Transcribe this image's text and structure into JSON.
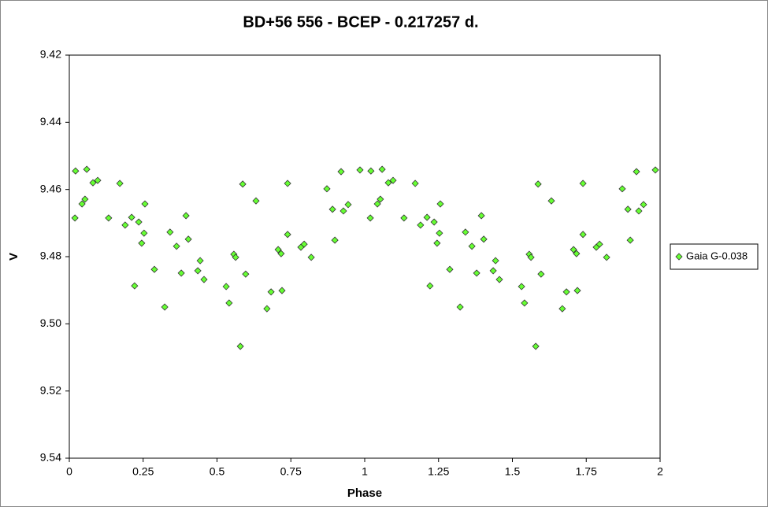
{
  "chart_data": {
    "type": "scatter",
    "title": "BD+56 556 - BCEP - 0.217257 d.",
    "x_label": "Phase",
    "y_label": "V",
    "xlim": [
      0,
      2
    ],
    "xticks": [
      0,
      0.25,
      0.5,
      0.75,
      1,
      1.25,
      1.5,
      1.75,
      2
    ],
    "ylim": [
      9.54,
      9.42
    ],
    "yticks": [
      9.42,
      9.44,
      9.46,
      9.48,
      {
        "value": 9.5,
        "label": "9.50"
      },
      9.52,
      9.54
    ],
    "legend": "right",
    "x": [
      0.019,
      0.021,
      0.043,
      0.053,
      0.059,
      0.08,
      0.096,
      0.133,
      0.171,
      0.189,
      0.211,
      0.221,
      0.235,
      0.245,
      0.253,
      0.256,
      0.288,
      0.323,
      0.341,
      0.363,
      0.379,
      0.395,
      0.403,
      0.435,
      0.443,
      0.456,
      0.531,
      0.541,
      0.557,
      0.563,
      0.579,
      0.587,
      0.597,
      0.632,
      0.669,
      0.683,
      0.707,
      0.717,
      0.72,
      0.739,
      0.739,
      0.784,
      0.795,
      0.819,
      0.872,
      0.891,
      0.899,
      0.92,
      0.928,
      0.944,
      0.984,
      1.019,
      1.021,
      1.043,
      1.053,
      1.059,
      1.08,
      1.096,
      1.133,
      1.171,
      1.189,
      1.211,
      1.221,
      1.235,
      1.245,
      1.253,
      1.256,
      1.288,
      1.323,
      1.341,
      1.363,
      1.379,
      1.395,
      1.403,
      1.435,
      1.443,
      1.456,
      1.531,
      1.541,
      1.557,
      1.563,
      1.579,
      1.587,
      1.597,
      1.632,
      1.669,
      1.683,
      1.707,
      1.717,
      1.72,
      1.739,
      1.739,
      1.784,
      1.795,
      1.819,
      1.872,
      1.891,
      1.899,
      1.92,
      1.928,
      1.944,
      1.984
    ],
    "series": [
      {
        "name": "Gaia G-0.038",
        "color": "#66ff33",
        "values": [
          9.4685,
          9.4545,
          9.4643,
          9.4629,
          9.454,
          9.458,
          9.4573,
          9.4685,
          9.4582,
          9.4706,
          9.4683,
          9.4887,
          9.4697,
          9.476,
          9.473,
          9.4643,
          9.4838,
          9.495,
          9.4727,
          9.4769,
          9.4849,
          9.4678,
          9.4748,
          9.4842,
          9.4812,
          9.4868,
          9.4889,
          9.4938,
          9.4793,
          9.4802,
          9.5067,
          9.4584,
          9.4852,
          9.4634,
          9.4955,
          9.4905,
          9.4779,
          9.4791,
          9.4901,
          9.4582,
          9.4734,
          9.4772,
          9.4763,
          9.4802,
          9.4598,
          9.4659,
          9.4751,
          9.4547,
          9.4664,
          9.4645,
          9.4542,
          9.4685,
          9.4545,
          9.4643,
          9.4629,
          9.454,
          9.458,
          9.4573,
          9.4685,
          9.4582,
          9.4706,
          9.4683,
          9.4887,
          9.4697,
          9.476,
          9.473,
          9.4643,
          9.4838,
          9.495,
          9.4727,
          9.4769,
          9.4849,
          9.4678,
          9.4748,
          9.4842,
          9.4812,
          9.4868,
          9.4889,
          9.4938,
          9.4793,
          9.4802,
          9.5067,
          9.4584,
          9.4852,
          9.4634,
          9.4955,
          9.4905,
          9.4779,
          9.4791,
          9.4901,
          9.4582,
          9.4734,
          9.4772,
          9.4763,
          9.4802,
          9.4598,
          9.4659,
          9.4751,
          9.4547,
          9.4664,
          9.4645,
          9.4542
        ]
      }
    ]
  }
}
